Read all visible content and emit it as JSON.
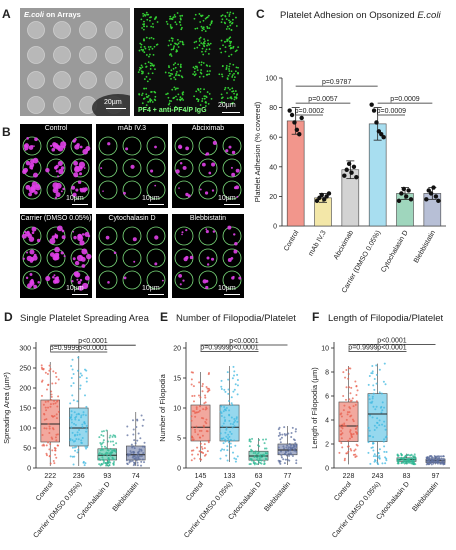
{
  "panelA": {
    "letter": "A",
    "left_caption_italic": "E.coli",
    "left_caption_rest": " on Arrays",
    "left_scale": "20µm",
    "right_caption": "PF4 + anti-PF4/P IgG",
    "right_scale": "20µm",
    "colors": {
      "gray": "#9a9a9a",
      "green": "#33d133",
      "dark": "#0d0d0d"
    }
  },
  "panelB": {
    "letter": "B",
    "tiles": [
      {
        "label": "Control",
        "scale": "10µm",
        "signal": "magenta"
      },
      {
        "label": "mAb IV.3",
        "scale": "10µm",
        "signal": "sparse"
      },
      {
        "label": "Abciximab",
        "scale": "10µm",
        "signal": "mixed"
      },
      {
        "label": "Carrier (DMSO 0.05%)",
        "scale": "10µm",
        "signal": "magenta"
      },
      {
        "label": "Cytochalasin D",
        "scale": "10µm",
        "signal": "sparse"
      },
      {
        "label": "Blebbistatin",
        "scale": "10µm",
        "signal": "mixed"
      }
    ],
    "colors": {
      "magenta": "#e040e8",
      "ring": "#7de07d"
    }
  },
  "panelC": {
    "letter": "C",
    "title_prefix": "Platelet Adhesion on Opsonized ",
    "title_italic": "E.coli"
  },
  "panelD": {
    "letter": "D",
    "title": "Single Platelet Spreading Area"
  },
  "panelE": {
    "letter": "E",
    "title": "Number of Filopodia/Platelet"
  },
  "panelF": {
    "letter": "F",
    "title": "Length of Filopodia/Platelet"
  },
  "chart_data": [
    {
      "id": "C",
      "type": "bar",
      "ylabel": "Platelet Adhesion (% covered)",
      "ylim": [
        0,
        100
      ],
      "yticks": [
        0,
        20,
        40,
        60,
        80,
        100
      ],
      "categories": [
        "Control",
        "mAb IV.3",
        "Abciximab",
        "Carrier (DMSO 0.05%)",
        "Cytochalasin D",
        "Blebbistatin"
      ],
      "values": [
        71,
        19,
        38,
        69,
        22,
        22
      ],
      "errors": [
        9,
        3,
        6,
        11,
        4,
        4
      ],
      "points": [
        [
          78,
          75,
          70,
          65,
          62,
          73
        ],
        [
          17,
          19,
          21,
          18,
          20,
          22
        ],
        [
          34,
          38,
          42,
          36,
          40,
          33
        ],
        [
          82,
          78,
          70,
          64,
          62,
          60
        ],
        [
          17,
          22,
          25,
          20,
          24,
          18
        ],
        [
          18,
          24,
          22,
          26,
          20,
          17
        ]
      ],
      "colors": [
        "#f2968c",
        "#f3e7a8",
        "#d3d3d3",
        "#a8def0",
        "#9fd6bd",
        "#b7bfd6"
      ],
      "brackets": [
        {
          "from": 0,
          "to": 3,
          "label": "p=0.9787",
          "y": 94.5
        },
        {
          "from": 0,
          "to": 2,
          "label": "p=0.0057",
          "y": 83
        },
        {
          "from": 3,
          "to": 5,
          "label": "p=0.0009",
          "y": 83
        },
        {
          "from": 0,
          "to": 1,
          "label": "p=0.0002",
          "y": 75
        },
        {
          "from": 3,
          "to": 4,
          "label": "p=0.0009",
          "y": 75
        }
      ]
    },
    {
      "id": "D",
      "type": "boxplot",
      "ylabel": "Spreading Area (µm²)",
      "ylim": [
        0,
        300
      ],
      "yticks": [
        0,
        50,
        100,
        150,
        200,
        250,
        300
      ],
      "categories": [
        "Control",
        "Carrier (DMSO 0.05%)",
        "Cytochalasin D",
        "Blebbistatin"
      ],
      "n": [
        "222",
        "236",
        "93",
        "74"
      ],
      "boxes": [
        {
          "min": 5,
          "q1": 65,
          "median": 110,
          "q3": 170,
          "max": 265
        },
        {
          "min": 5,
          "q1": 55,
          "median": 100,
          "q3": 150,
          "max": 280
        },
        {
          "min": 5,
          "q1": 20,
          "median": 32,
          "q3": 48,
          "max": 95
        },
        {
          "min": 5,
          "q1": 20,
          "median": 33,
          "q3": 55,
          "max": 140
        }
      ],
      "colors": [
        "#e8604f",
        "#3fb8e0",
        "#2fb894",
        "#5e6f9e"
      ],
      "brackets": [
        {
          "from": 0,
          "to": 3,
          "label": "p<0.0001",
          "y": 307
        },
        {
          "from": 0,
          "to": 1,
          "label": "p=0.9999",
          "y": 290
        },
        {
          "from": 1,
          "to": 2,
          "label": "p<0.0001",
          "y": 290
        }
      ]
    },
    {
      "id": "E",
      "type": "boxplot",
      "ylabel": "Number of Filopodia",
      "ylim": [
        0,
        20
      ],
      "yticks": [
        0,
        5,
        10,
        15,
        20
      ],
      "categories": [
        "Control",
        "Carrier (DMSO 0.05%)",
        "Cytochalasin D",
        "Blebbistatin"
      ],
      "n": [
        "145",
        "133",
        "63",
        "77"
      ],
      "boxes": [
        {
          "min": 1,
          "q1": 4.5,
          "median": 6.8,
          "q3": 10.5,
          "max": 16
        },
        {
          "min": 1,
          "q1": 4.5,
          "median": 6.8,
          "q3": 10.5,
          "max": 17
        },
        {
          "min": 0.5,
          "q1": 1.3,
          "median": 2,
          "q3": 2.8,
          "max": 5
        },
        {
          "min": 0.5,
          "q1": 2.2,
          "median": 3,
          "q3": 4,
          "max": 7
        }
      ],
      "colors": [
        "#e8604f",
        "#3fb8e0",
        "#2fb894",
        "#5e6f9e"
      ],
      "brackets": [
        {
          "from": 0,
          "to": 3,
          "label": "p<0.0001",
          "y": 20.5
        },
        {
          "from": 0,
          "to": 1,
          "label": "p=0.9999",
          "y": 19.4
        },
        {
          "from": 1,
          "to": 2,
          "label": "p<0.0001",
          "y": 19.4
        }
      ]
    },
    {
      "id": "F",
      "type": "boxplot",
      "ylabel": "Length of Filopodia (µm)",
      "ylim": [
        0,
        10
      ],
      "yticks": [
        0,
        2,
        4,
        6,
        8,
        10
      ],
      "categories": [
        "Control",
        "Carrier (DMSO 0.05%)",
        "Cytochalasin D",
        "Blebbistatin"
      ],
      "n": [
        "228",
        "243",
        "83",
        "97"
      ],
      "boxes": [
        {
          "min": 0.3,
          "q1": 2.2,
          "median": 3.5,
          "q3": 5.5,
          "max": 8.5
        },
        {
          "min": 0.3,
          "q1": 2.2,
          "median": 4.5,
          "q3": 6.2,
          "max": 8.7
        },
        {
          "min": 0.3,
          "q1": 0.55,
          "median": 0.7,
          "q3": 0.85,
          "max": 1.2
        },
        {
          "min": 0.3,
          "q1": 0.45,
          "median": 0.6,
          "q3": 0.75,
          "max": 1
        }
      ],
      "colors": [
        "#e8604f",
        "#3fb8e0",
        "#2fb894",
        "#5e6f9e"
      ],
      "brackets": [
        {
          "from": 0,
          "to": 3,
          "label": "p<0.0001",
          "y": 10.3
        },
        {
          "from": 0,
          "to": 1,
          "label": "p=0.9999",
          "y": 9.7
        },
        {
          "from": 1,
          "to": 2,
          "label": "p<0.0001",
          "y": 9.7
        }
      ]
    }
  ]
}
